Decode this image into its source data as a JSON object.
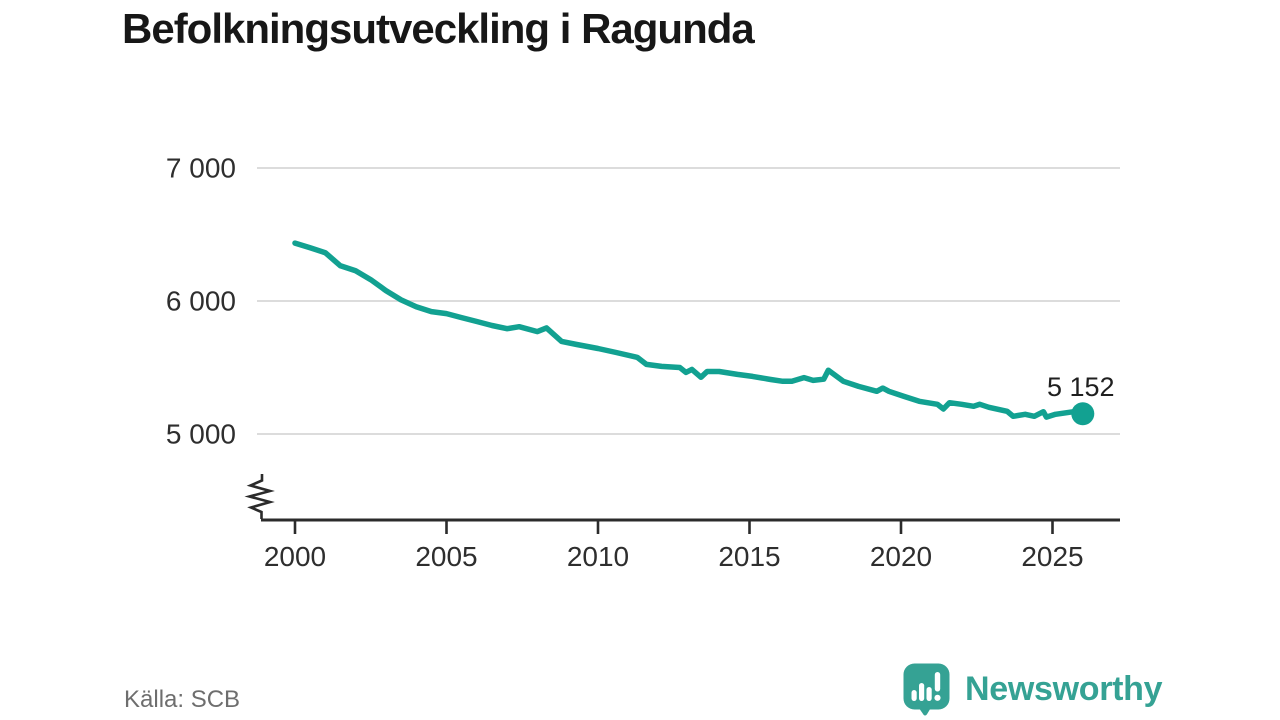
{
  "title": "Befolkningsutveckling i Ragunda",
  "source": "Källa: SCB",
  "brand": {
    "name": "Newsworthy",
    "logo_icon": "bar-chart-speech-bubble-icon"
  },
  "colors": {
    "line": "#12a191",
    "grid": "#dcdcdc",
    "axis": "#2b2b2b",
    "tick_text": "#2e2e2e",
    "title_text": "#171717",
    "muted_text": "#6e6e6e",
    "brand_teal": "#35a294",
    "annotation_text": "#1f1f1f"
  },
  "chart_data": {
    "type": "line",
    "title": "Befolkningsutveckling i Ragunda",
    "xlabel": "",
    "ylabel": "",
    "grid": "horizontal",
    "legend": "none",
    "x_axis": {
      "ticks": [
        2000,
        2005,
        2010,
        2015,
        2020,
        2025
      ],
      "tick_labels": [
        "2000",
        "2005",
        "2010",
        "2015",
        "2020",
        "2025"
      ],
      "range": [
        1998.9,
        2027.2
      ]
    },
    "y_axis": {
      "ticks": [
        7000,
        6000,
        5000
      ],
      "tick_labels": [
        "7 000",
        "6 000",
        "5 000"
      ],
      "shown_range": [
        5000,
        7000
      ],
      "axis_break": true
    },
    "series": [
      {
        "name": "Befolkning",
        "color": "#12a191",
        "points": [
          [
            2000.0,
            6435
          ],
          [
            2000.5,
            6400
          ],
          [
            2001.0,
            6363
          ],
          [
            2001.5,
            6265
          ],
          [
            2002.0,
            6228
          ],
          [
            2002.5,
            6160
          ],
          [
            2003.0,
            6078
          ],
          [
            2003.5,
            6008
          ],
          [
            2004.0,
            5957
          ],
          [
            2004.5,
            5920
          ],
          [
            2005.0,
            5905
          ],
          [
            2005.5,
            5875
          ],
          [
            2006.0,
            5846
          ],
          [
            2006.5,
            5816
          ],
          [
            2007.0,
            5792
          ],
          [
            2007.4,
            5807
          ],
          [
            2008.0,
            5770
          ],
          [
            2008.3,
            5798
          ],
          [
            2008.8,
            5696
          ],
          [
            2009.3,
            5673
          ],
          [
            2010.0,
            5643
          ],
          [
            2010.6,
            5613
          ],
          [
            2011.3,
            5576
          ],
          [
            2011.6,
            5523
          ],
          [
            2012.1,
            5508
          ],
          [
            2012.7,
            5500
          ],
          [
            2012.9,
            5463
          ],
          [
            2013.1,
            5486
          ],
          [
            2013.4,
            5426
          ],
          [
            2013.6,
            5470
          ],
          [
            2014.0,
            5470
          ],
          [
            2014.6,
            5448
          ],
          [
            2015.1,
            5433
          ],
          [
            2015.7,
            5410
          ],
          [
            2016.1,
            5396
          ],
          [
            2016.4,
            5396
          ],
          [
            2016.8,
            5424
          ],
          [
            2017.1,
            5403
          ],
          [
            2017.45,
            5412
          ],
          [
            2017.6,
            5480
          ],
          [
            2018.1,
            5396
          ],
          [
            2018.6,
            5358
          ],
          [
            2019.2,
            5321
          ],
          [
            2019.4,
            5345
          ],
          [
            2019.6,
            5321
          ],
          [
            2020.1,
            5283
          ],
          [
            2020.6,
            5246
          ],
          [
            2021.2,
            5223
          ],
          [
            2021.4,
            5188
          ],
          [
            2021.6,
            5235
          ],
          [
            2022.0,
            5223
          ],
          [
            2022.4,
            5208
          ],
          [
            2022.6,
            5223
          ],
          [
            2022.9,
            5201
          ],
          [
            2023.5,
            5171
          ],
          [
            2023.7,
            5133
          ],
          [
            2024.1,
            5148
          ],
          [
            2024.4,
            5133
          ],
          [
            2024.7,
            5168
          ],
          [
            2024.8,
            5127
          ],
          [
            2025.1,
            5148
          ],
          [
            2025.7,
            5168
          ],
          [
            2026.0,
            5152
          ]
        ]
      }
    ],
    "end_annotation": {
      "label": "5 152",
      "value": 5152,
      "year": 2026
    }
  }
}
